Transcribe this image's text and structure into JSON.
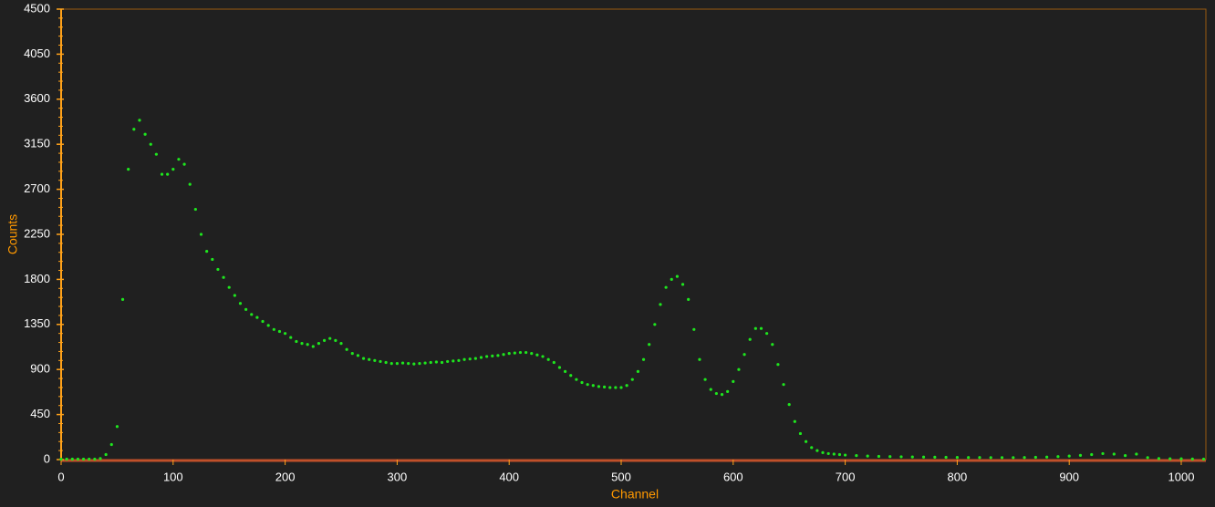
{
  "chart_data": {
    "type": "scatter",
    "x_label": "Channel",
    "y_label": "Counts",
    "x": [
      0,
      5,
      10,
      15,
      20,
      25,
      30,
      35,
      40,
      45,
      50,
      55,
      60,
      65,
      70,
      75,
      80,
      85,
      90,
      95,
      100,
      105,
      110,
      115,
      120,
      125,
      130,
      135,
      140,
      145,
      150,
      155,
      160,
      165,
      170,
      175,
      180,
      185,
      190,
      195,
      200,
      205,
      210,
      215,
      220,
      225,
      230,
      235,
      240,
      245,
      250,
      255,
      260,
      265,
      270,
      275,
      280,
      285,
      290,
      295,
      300,
      305,
      310,
      315,
      320,
      325,
      330,
      335,
      340,
      345,
      350,
      355,
      360,
      365,
      370,
      375,
      380,
      385,
      390,
      395,
      400,
      405,
      410,
      415,
      420,
      425,
      430,
      435,
      440,
      445,
      450,
      455,
      460,
      465,
      470,
      475,
      480,
      485,
      490,
      495,
      500,
      505,
      510,
      515,
      520,
      525,
      530,
      535,
      540,
      545,
      550,
      555,
      560,
      565,
      570,
      575,
      580,
      585,
      590,
      595,
      600,
      605,
      610,
      615,
      620,
      625,
      630,
      635,
      640,
      645,
      650,
      655,
      660,
      665,
      670,
      675,
      680,
      685,
      690,
      695,
      700,
      710,
      720,
      730,
      740,
      750,
      760,
      770,
      780,
      790,
      800,
      810,
      820,
      830,
      840,
      850,
      860,
      870,
      880,
      890,
      900,
      910,
      920,
      930,
      940,
      950,
      960,
      970,
      980,
      990,
      1000,
      1010,
      1020
    ],
    "series": [
      {
        "color": "#1ee61e",
        "values": [
          5,
          5,
          5,
          5,
          5,
          5,
          5,
          10,
          50,
          150,
          330,
          1600,
          2900,
          3300,
          3390,
          3250,
          3150,
          3050,
          2850,
          2850,
          2900,
          3000,
          2950,
          2750,
          2500,
          2250,
          2080,
          2000,
          1900,
          1820,
          1720,
          1640,
          1560,
          1500,
          1450,
          1420,
          1380,
          1340,
          1300,
          1280,
          1260,
          1220,
          1180,
          1160,
          1150,
          1130,
          1160,
          1190,
          1210,
          1190,
          1160,
          1100,
          1060,
          1040,
          1010,
          1000,
          990,
          980,
          970,
          960,
          960,
          965,
          960,
          955,
          960,
          965,
          970,
          975,
          970,
          980,
          985,
          990,
          1000,
          1005,
          1010,
          1020,
          1030,
          1035,
          1040,
          1050,
          1060,
          1065,
          1070,
          1070,
          1060,
          1045,
          1030,
          1000,
          970,
          920,
          880,
          840,
          800,
          770,
          750,
          740,
          730,
          725,
          720,
          720,
          720,
          740,
          800,
          880,
          1000,
          1150,
          1350,
          1550,
          1720,
          1800,
          1830,
          1750,
          1600,
          1300,
          1000,
          800,
          700,
          660,
          650,
          680,
          780,
          900,
          1050,
          1200,
          1310,
          1310,
          1260,
          1150,
          950,
          750,
          550,
          380,
          260,
          180,
          120,
          90,
          70,
          60,
          55,
          50,
          45,
          40,
          35,
          32,
          30,
          28,
          26,
          25,
          24,
          23,
          22,
          21,
          21,
          20,
          20,
          20,
          21,
          23,
          25,
          30,
          35,
          42,
          50,
          60,
          55,
          40,
          55,
          20,
          10,
          8,
          8,
          6,
          5
        ]
      }
    ],
    "xlim": [
      0,
      1022
    ],
    "ylim": [
      0,
      4500
    ],
    "xticks": [
      0,
      100,
      200,
      300,
      400,
      500,
      600,
      700,
      800,
      900,
      1000
    ],
    "yticks": [
      0,
      450,
      900,
      1350,
      1800,
      2250,
      2700,
      3150,
      3600,
      4050,
      4500
    ]
  }
}
